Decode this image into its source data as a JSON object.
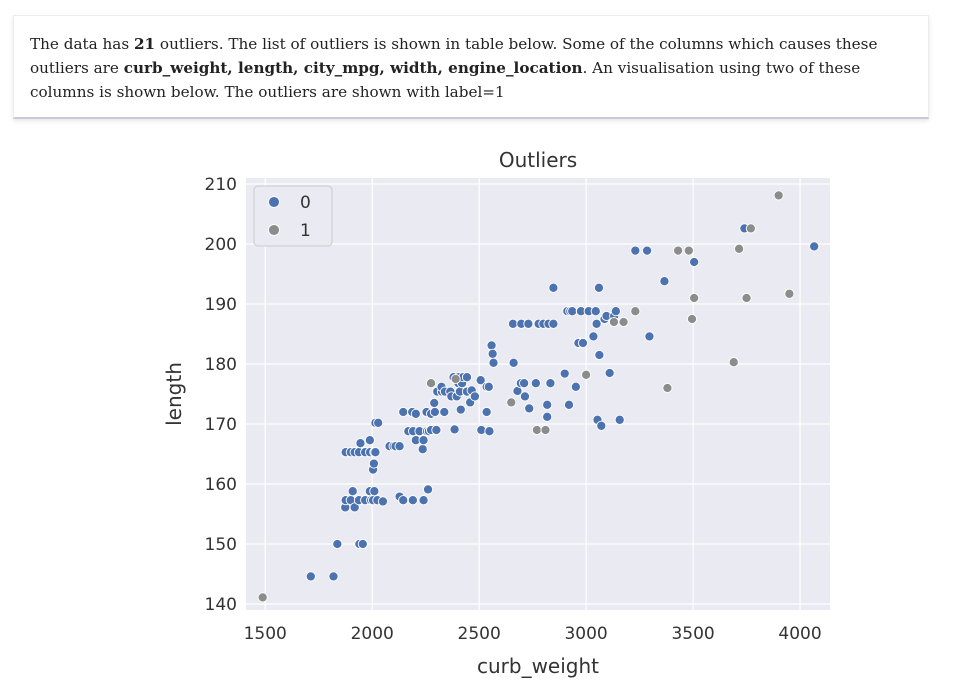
{
  "description": {
    "prefix": "The data has ",
    "count": "21",
    "mid": " outliers. The list of outliers is shown in table below. Some of the columns which causes these outliers are ",
    "columns": "curb_weight, length, city_mpg, width, engine_location",
    "suffix": ". An visualisation using two of these columns is shown below. The outliers are shown with label=1"
  },
  "colors": {
    "inlier": "#4c72b0",
    "outlier": "#8c8c8c",
    "plot_bg": "#eaeaf2",
    "grid": "#ffffff"
  },
  "chart_data": {
    "type": "scatter",
    "title": "Outliers",
    "xlabel": "curb_weight",
    "ylabel": "length",
    "xlim": [
      1410,
      4140
    ],
    "ylim": [
      139,
      211
    ],
    "xticks": [
      1500,
      2000,
      2500,
      3000,
      3500,
      4000
    ],
    "yticks": [
      140,
      150,
      160,
      170,
      180,
      190,
      200,
      210
    ],
    "grid": true,
    "legend": {
      "placement": "top-left",
      "entries": [
        "0",
        "1"
      ]
    },
    "series": [
      {
        "name": "0",
        "points": [
          [
            1713,
            144.6
          ],
          [
            1819,
            144.6
          ],
          [
            1837,
            150.0
          ],
          [
            1940,
            150.0
          ],
          [
            1956,
            150.0
          ],
          [
            1874,
            156.1
          ],
          [
            1876,
            157.3
          ],
          [
            1900,
            157.3
          ],
          [
            1909,
            158.8
          ],
          [
            1918,
            156.1
          ],
          [
            1938,
            157.3
          ],
          [
            1967,
            157.3
          ],
          [
            1989,
            158.8
          ],
          [
            1995,
            157.3
          ],
          [
            2004,
            157.3
          ],
          [
            2010,
            158.8
          ],
          [
            2024,
            157.3
          ],
          [
            2050,
            157.1
          ],
          [
            2128,
            157.9
          ],
          [
            2145,
            157.3
          ],
          [
            2190,
            157.3
          ],
          [
            2240,
            157.3
          ],
          [
            2261,
            159.1
          ],
          [
            1876,
            165.3
          ],
          [
            1900,
            165.3
          ],
          [
            1918,
            165.3
          ],
          [
            1938,
            165.3
          ],
          [
            1945,
            166.8
          ],
          [
            1967,
            165.3
          ],
          [
            1990,
            165.3
          ],
          [
            2004,
            162.4
          ],
          [
            2008,
            163.4
          ],
          [
            2010,
            165.3
          ],
          [
            2015,
            165.3
          ],
          [
            1989,
            167.3
          ],
          [
            2015,
            170.2
          ],
          [
            2028,
            170.2
          ],
          [
            2081,
            166.3
          ],
          [
            2100,
            166.3
          ],
          [
            2109,
            166.3
          ],
          [
            2128,
            166.3
          ],
          [
            2145,
            172.0
          ],
          [
            2187,
            172.0
          ],
          [
            2169,
            168.8
          ],
          [
            2191,
            168.8
          ],
          [
            2204,
            171.7
          ],
          [
            2204,
            167.3
          ],
          [
            2221,
            168.8
          ],
          [
            2236,
            165.8
          ],
          [
            2240,
            167.3
          ],
          [
            2254,
            172.0
          ],
          [
            2256,
            168.8
          ],
          [
            2265,
            168.8
          ],
          [
            2275,
            169.0
          ],
          [
            2275,
            171.7
          ],
          [
            2290,
            173.5
          ],
          [
            2293,
            172.0
          ],
          [
            2300,
            169.0
          ],
          [
            2304,
            175.4
          ],
          [
            2326,
            175.4
          ],
          [
            2324,
            176.2
          ],
          [
            2337,
            172.0
          ],
          [
            2340,
            175.4
          ],
          [
            2365,
            175.4
          ],
          [
            2370,
            174.6
          ],
          [
            2380,
            177.8
          ],
          [
            2385,
            169.1
          ],
          [
            2395,
            174.6
          ],
          [
            2403,
            176.8
          ],
          [
            2405,
            177.8
          ],
          [
            2410,
            175.4
          ],
          [
            2414,
            172.4
          ],
          [
            2420,
            176.8
          ],
          [
            2425,
            177.8
          ],
          [
            2443,
            175.4
          ],
          [
            2443,
            177.8
          ],
          [
            2458,
            173.6
          ],
          [
            2465,
            175.6
          ],
          [
            2480,
            174.6
          ],
          [
            2507,
            177.3
          ],
          [
            2510,
            169.0
          ],
          [
            2535,
            172.0
          ],
          [
            2535,
            176.2
          ],
          [
            2545,
            176.2
          ],
          [
            2548,
            168.8
          ],
          [
            2558,
            183.1
          ],
          [
            2563,
            181.7
          ],
          [
            2567,
            180.2
          ],
          [
            2658,
            186.7
          ],
          [
            2661,
            180.2
          ],
          [
            2679,
            175.5
          ],
          [
            2695,
            176.8
          ],
          [
            2697,
            186.7
          ],
          [
            2710,
            176.8
          ],
          [
            2714,
            174.6
          ],
          [
            2730,
            186.7
          ],
          [
            2734,
            172.6
          ],
          [
            2765,
            176.8
          ],
          [
            2778,
            186.7
          ],
          [
            2800,
            186.7
          ],
          [
            2818,
            173.2
          ],
          [
            2818,
            171.2
          ],
          [
            2824,
            186.7
          ],
          [
            2833,
            176.8
          ],
          [
            2847,
            186.7
          ],
          [
            2847,
            192.7
          ],
          [
            2900,
            178.4
          ],
          [
            2912,
            188.8
          ],
          [
            2920,
            173.2
          ],
          [
            2926,
            188.8
          ],
          [
            2935,
            188.8
          ],
          [
            2952,
            176.2
          ],
          [
            2964,
            183.5
          ],
          [
            2975,
            188.8
          ],
          [
            2976,
            188.8
          ],
          [
            2985,
            183.5
          ],
          [
            3012,
            188.8
          ],
          [
            3034,
            184.6
          ],
          [
            3045,
            188.8
          ],
          [
            3049,
            186.7
          ],
          [
            3053,
            170.7
          ],
          [
            3060,
            192.7
          ],
          [
            3062,
            181.5
          ],
          [
            3071,
            169.7
          ],
          [
            3086,
            187.5
          ],
          [
            3095,
            188.0
          ],
          [
            3110,
            178.5
          ],
          [
            3131,
            188.0
          ],
          [
            3139,
            188.8
          ],
          [
            3157,
            170.7
          ],
          [
            3230,
            198.9
          ],
          [
            3285,
            198.9
          ],
          [
            3296,
            184.6
          ],
          [
            3366,
            193.8
          ],
          [
            3505,
            197.0
          ],
          [
            3740,
            202.6
          ],
          [
            4066,
            199.6
          ]
        ]
      },
      {
        "name": "1",
        "points": [
          [
            1488,
            141.1
          ],
          [
            2275,
            176.8
          ],
          [
            2650,
            173.6
          ],
          [
            2770,
            169.0
          ],
          [
            2810,
            169.0
          ],
          [
            3000,
            178.2
          ],
          [
            3130,
            187.0
          ],
          [
            3175,
            187.0
          ],
          [
            3230,
            188.8
          ],
          [
            3380,
            176.0
          ],
          [
            3430,
            198.9
          ],
          [
            3480,
            198.9
          ],
          [
            3495,
            187.5
          ],
          [
            3505,
            191.0
          ],
          [
            3690,
            180.3
          ],
          [
            3715,
            199.2
          ],
          [
            3750,
            191.0
          ],
          [
            3770,
            202.6
          ],
          [
            3900,
            208.1
          ],
          [
            3950,
            191.7
          ],
          [
            2390,
            177.5
          ]
        ]
      }
    ]
  }
}
